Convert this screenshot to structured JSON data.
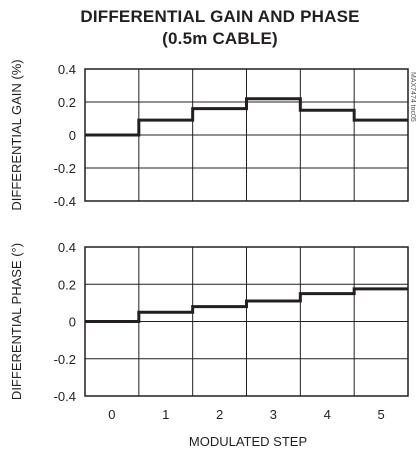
{
  "chart_data": {
    "title_line1": "DIFFERENTIAL GAIN AND PHASE",
    "title_line2": "(0.5m CABLE)",
    "xlabel": "MODULATED STEP",
    "x_ticks": [
      "0",
      "1",
      "2",
      "3",
      "4",
      "5"
    ],
    "watermark": "MAX7474 toc05",
    "charts": [
      {
        "type": "line",
        "step": true,
        "ylabel": "DIFFERENTIAL GAIN (%)",
        "ylim": [
          -0.4,
          0.4
        ],
        "y_ticks": [
          "0.4",
          "0.2",
          "0",
          "-0.2",
          "-0.4"
        ],
        "grid": true,
        "x": [
          0,
          1,
          2,
          3,
          4,
          5
        ],
        "values": [
          0.0,
          0.09,
          0.16,
          0.22,
          0.15,
          0.09
        ]
      },
      {
        "type": "line",
        "step": true,
        "ylabel": "DIFFERENTIAL PHASE (°)",
        "ylim": [
          -0.4,
          0.4
        ],
        "y_ticks": [
          "0.4",
          "0.2",
          "0",
          "-0.2",
          "-0.4"
        ],
        "grid": true,
        "x": [
          0,
          1,
          2,
          3,
          4,
          5
        ],
        "values": [
          0.0,
          0.05,
          0.08,
          0.11,
          0.15,
          0.175
        ]
      }
    ]
  }
}
